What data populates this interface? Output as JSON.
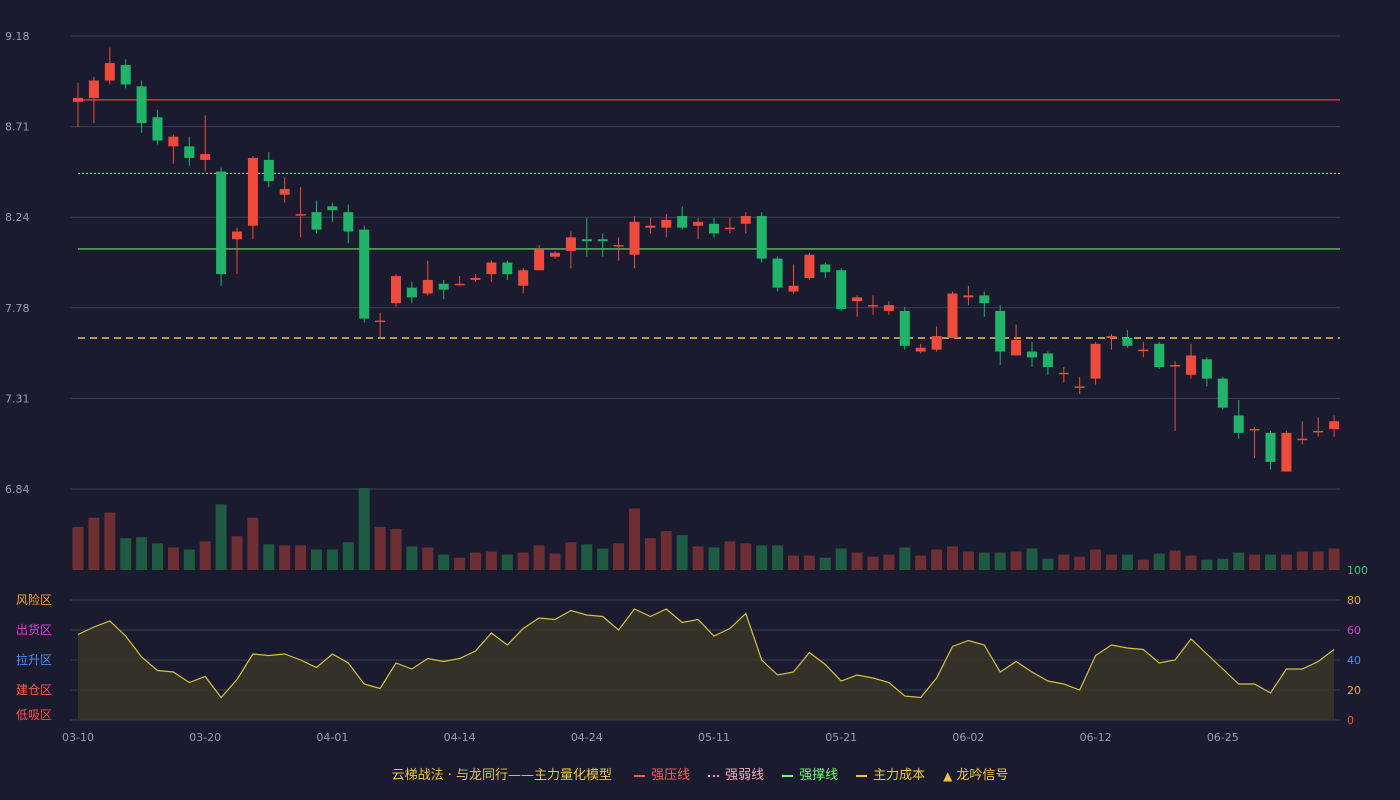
{
  "chart_data": {
    "type": "candlestick",
    "price_axis": {
      "ticks": [
        "9.18",
        "8.71",
        "8.24",
        "7.78",
        "7.31",
        "6.84"
      ],
      "range": [
        6.84,
        9.18
      ]
    },
    "x_labels": [
      "03-10",
      "03-20",
      "04-01",
      "04-14",
      "04-24",
      "05-11",
      "05-21",
      "06-02",
      "06-12",
      "06-25"
    ],
    "x_label_index": [
      0,
      8,
      16,
      24,
      32,
      40,
      48,
      56,
      64,
      72
    ],
    "candles": [
      [
        8.84,
        8.86,
        8.71,
        8.94
      ],
      [
        8.86,
        8.95,
        8.73,
        8.97
      ],
      [
        8.95,
        9.04,
        8.93,
        9.12
      ],
      [
        9.03,
        8.93,
        8.91,
        9.06
      ],
      [
        8.92,
        8.73,
        8.68,
        8.95
      ],
      [
        8.76,
        8.64,
        8.62,
        8.8
      ],
      [
        8.61,
        8.66,
        8.52,
        8.67
      ],
      [
        8.61,
        8.55,
        8.51,
        8.66
      ],
      [
        8.54,
        8.57,
        8.48,
        8.77
      ],
      [
        8.48,
        7.95,
        7.89,
        8.5
      ],
      [
        8.13,
        8.17,
        7.95,
        8.19
      ],
      [
        8.2,
        8.55,
        8.13,
        8.56
      ],
      [
        8.54,
        8.43,
        8.4,
        8.58
      ],
      [
        8.36,
        8.39,
        8.32,
        8.45
      ],
      [
        8.26,
        8.26,
        8.14,
        8.4
      ],
      [
        8.27,
        8.18,
        8.16,
        8.33
      ],
      [
        8.3,
        8.28,
        8.22,
        8.32
      ],
      [
        8.27,
        8.17,
        8.11,
        8.31
      ],
      [
        8.18,
        7.72,
        7.7,
        8.2
      ],
      [
        7.71,
        7.71,
        7.62,
        7.75
      ],
      [
        7.8,
        7.94,
        7.78,
        7.95
      ],
      [
        7.88,
        7.83,
        7.8,
        7.91
      ],
      [
        7.85,
        7.92,
        7.84,
        8.02
      ],
      [
        7.9,
        7.87,
        7.82,
        7.92
      ],
      [
        7.9,
        7.9,
        7.89,
        7.94
      ],
      [
        7.92,
        7.93,
        7.91,
        7.95
      ],
      [
        7.95,
        8.01,
        7.91,
        8.02
      ],
      [
        8.01,
        7.95,
        7.92,
        8.02
      ],
      [
        7.89,
        7.97,
        7.85,
        7.98
      ],
      [
        7.97,
        8.08,
        7.97,
        8.1
      ],
      [
        8.04,
        8.06,
        8.03,
        8.07
      ],
      [
        8.07,
        8.14,
        7.98,
        8.17
      ],
      [
        8.13,
        8.12,
        8.04,
        8.24
      ],
      [
        8.13,
        8.12,
        8.04,
        8.16
      ],
      [
        8.1,
        8.1,
        8.02,
        8.14
      ],
      [
        8.05,
        8.22,
        7.98,
        8.25
      ],
      [
        8.19,
        8.2,
        8.16,
        8.24
      ],
      [
        8.19,
        8.23,
        8.14,
        8.26
      ],
      [
        8.25,
        8.19,
        8.18,
        8.3
      ],
      [
        8.2,
        8.22,
        8.13,
        8.24
      ],
      [
        8.21,
        8.16,
        8.14,
        8.24
      ],
      [
        8.19,
        8.19,
        8.16,
        8.24
      ],
      [
        8.21,
        8.25,
        8.16,
        8.27
      ],
      [
        8.25,
        8.03,
        8.01,
        8.27
      ],
      [
        8.03,
        7.88,
        7.86,
        8.04
      ],
      [
        7.86,
        7.89,
        7.85,
        8.0
      ],
      [
        7.93,
        8.05,
        7.92,
        8.06
      ],
      [
        8.0,
        7.96,
        7.93,
        8.01
      ],
      [
        7.97,
        7.77,
        7.76,
        7.98
      ],
      [
        7.81,
        7.83,
        7.73,
        7.84
      ],
      [
        7.79,
        7.79,
        7.74,
        7.84
      ],
      [
        7.76,
        7.79,
        7.74,
        7.81
      ],
      [
        7.76,
        7.58,
        7.56,
        7.78
      ],
      [
        7.55,
        7.57,
        7.54,
        7.59
      ],
      [
        7.56,
        7.63,
        7.55,
        7.68
      ],
      [
        7.62,
        7.85,
        7.62,
        7.86
      ],
      [
        7.83,
        7.84,
        7.79,
        7.89
      ],
      [
        7.84,
        7.8,
        7.73,
        7.86
      ],
      [
        7.76,
        7.55,
        7.48,
        7.79
      ],
      [
        7.53,
        7.61,
        7.53,
        7.69
      ],
      [
        7.55,
        7.52,
        7.47,
        7.6
      ],
      [
        7.54,
        7.47,
        7.43,
        7.55
      ],
      [
        7.44,
        7.44,
        7.39,
        7.47
      ],
      [
        7.37,
        7.37,
        7.33,
        7.42
      ],
      [
        7.41,
        7.59,
        7.38,
        7.6
      ],
      [
        7.62,
        7.63,
        7.56,
        7.64
      ],
      [
        7.62,
        7.58,
        7.57,
        7.66
      ],
      [
        7.56,
        7.56,
        7.52,
        7.6
      ],
      [
        7.59,
        7.47,
        7.46,
        7.6
      ],
      [
        7.48,
        7.48,
        7.14,
        7.5
      ],
      [
        7.43,
        7.53,
        7.41,
        7.59
      ],
      [
        7.51,
        7.41,
        7.37,
        7.52
      ],
      [
        7.41,
        7.26,
        7.25,
        7.42
      ],
      [
        7.22,
        7.13,
        7.1,
        7.3
      ],
      [
        7.15,
        7.15,
        7.0,
        7.16
      ],
      [
        7.13,
        6.98,
        6.94,
        7.14
      ],
      [
        6.93,
        7.13,
        6.93,
        7.14
      ],
      [
        7.1,
        7.1,
        7.07,
        7.19
      ],
      [
        7.14,
        7.14,
        7.11,
        7.21
      ],
      [
        7.15,
        7.19,
        7.11,
        7.22
      ]
    ],
    "volume_hint": "bars beneath price panel, colored by candle direction",
    "volume": [
      42,
      51,
      56,
      31,
      32,
      26,
      22,
      20,
      28,
      64,
      33,
      51,
      25,
      24,
      24,
      20,
      20,
      27,
      80,
      42,
      40,
      23,
      22,
      15,
      12,
      17,
      18,
      15,
      17,
      24,
      16,
      27,
      25,
      21,
      26,
      60,
      31,
      38,
      34,
      23,
      22,
      28,
      26,
      24,
      24,
      14,
      14,
      12,
      21,
      17,
      13,
      15,
      22,
      14,
      20,
      23,
      18,
      17,
      17,
      18,
      21,
      11,
      15,
      13,
      20,
      15,
      15,
      10,
      16,
      19,
      14,
      10,
      11,
      17,
      15,
      15,
      15,
      18,
      18,
      21
    ],
    "reference_lines": [
      {
        "name": "强压线",
        "value": 8.85,
        "color": "#b8363b",
        "style": "solid"
      },
      {
        "name": "强弱线",
        "value": 8.47,
        "color": "#f29a9a",
        "style": "dotted"
      },
      {
        "name": "强撑线",
        "value": 8.08,
        "color": "#6be26b",
        "style": "solid"
      },
      {
        "name": "主力成本",
        "value": 7.62,
        "color": "#f2c43a",
        "style": "dashed"
      }
    ],
    "indicator": {
      "axis_ticks": [
        "100",
        "80",
        "60",
        "40",
        "20",
        "0"
      ],
      "axis_tick_colors": [
        "#2ecc71",
        "#f5a623",
        "#e03fd0",
        "#4f8ef7",
        "#f5a623",
        "#ff4d4d"
      ],
      "range": [
        0,
        100
      ],
      "zones": [
        {
          "label": "风险区",
          "value": 80,
          "color": "#f5a623"
        },
        {
          "label": "出货区",
          "value": 60,
          "color": "#e03fd0"
        },
        {
          "label": "拉升区",
          "value": 40,
          "color": "#4f8ef7"
        },
        {
          "label": "建仓区",
          "value": 20,
          "color": "#ff5a5a"
        },
        {
          "label": "低吸区",
          "value": 0,
          "color": "#ff4d4d"
        }
      ],
      "values": [
        57,
        62,
        66,
        56,
        42,
        33,
        32,
        25,
        29,
        15,
        27,
        44,
        43,
        44,
        40,
        35,
        44,
        38,
        24,
        21,
        38,
        34,
        41,
        39,
        41,
        46,
        58,
        50,
        61,
        68,
        67,
        73,
        70,
        69,
        60,
        74,
        69,
        74,
        65,
        67,
        56,
        61,
        71,
        40,
        30,
        32,
        45,
        37,
        26,
        30,
        28,
        25,
        16,
        15,
        28,
        49,
        53,
        50,
        32,
        39,
        32,
        26,
        24,
        20,
        43,
        50,
        48,
        47,
        38,
        40,
        54,
        44,
        34,
        24,
        24,
        18,
        34,
        34,
        39,
        47
      ],
      "line_color": "#d4c23a"
    },
    "legend": {
      "title": "云梯战法 · 与龙同行——主力量化模型",
      "items": [
        {
          "label": "强压线",
          "color": "#ff5a4e",
          "marker": "line"
        },
        {
          "label": "强弱线",
          "color": "#f7a8b8",
          "marker": "dotted"
        },
        {
          "label": "强撑线",
          "color": "#6bff6b",
          "marker": "line"
        },
        {
          "label": "主力成本",
          "color": "#f2c43a",
          "marker": "dashed"
        },
        {
          "label": "龙吟信号",
          "color": "#f2c43a",
          "marker": "triangle"
        }
      ]
    },
    "colors": {
      "up": "#ef4b3c",
      "down": "#22b36a",
      "up_vol": "#6e2f34",
      "down_vol": "#1f5a43",
      "grid": "#3a3c52",
      "background": "#1a1b2e"
    }
  }
}
